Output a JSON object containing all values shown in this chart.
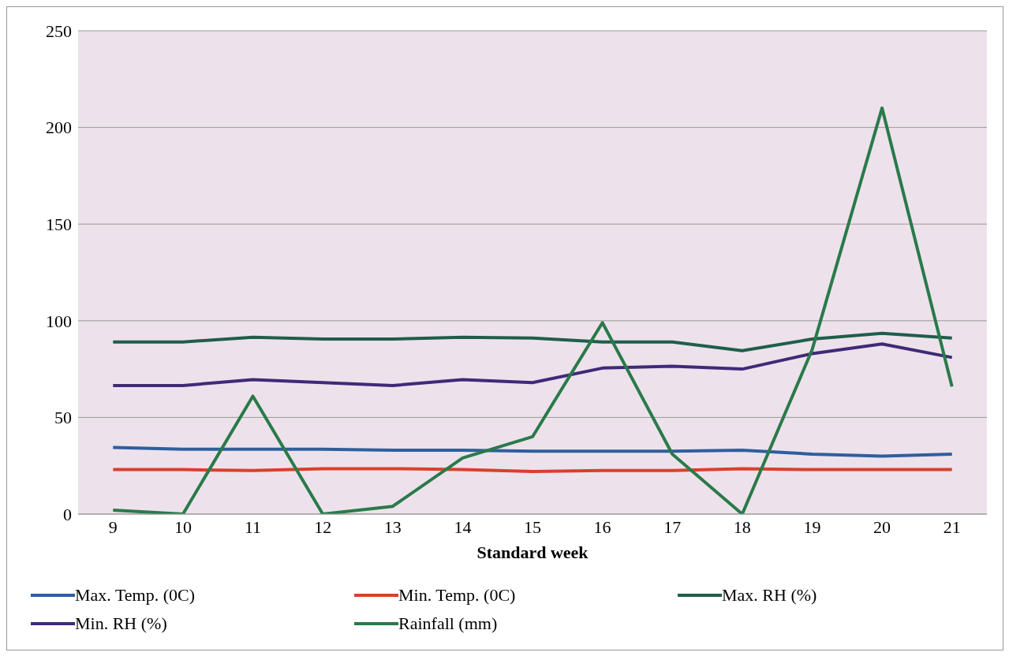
{
  "chart_data": {
    "type": "line",
    "xlabel": "Standard week",
    "categories": [
      "9",
      "10",
      "11",
      "12",
      "13",
      "14",
      "15",
      "16",
      "17",
      "18",
      "19",
      "20",
      "21"
    ],
    "ylim": [
      0,
      250
    ],
    "yticks": [
      0,
      50,
      100,
      150,
      200,
      250
    ],
    "grid": "y",
    "legend": "bottom",
    "marker": "none",
    "line_style": "solid",
    "series": [
      {
        "name": "Max. Temp. (0C)",
        "color": "#2e5f9e",
        "values": [
          34.5,
          33.5,
          33.5,
          33.5,
          33,
          33,
          32.5,
          32.5,
          32.5,
          33,
          31,
          30,
          31
        ]
      },
      {
        "name": "Min. Temp. (0C)",
        "color": "#d9402b",
        "values": [
          23,
          23,
          22.5,
          23.5,
          23.5,
          23,
          22,
          22.5,
          22.5,
          23.5,
          23,
          23,
          23
        ]
      },
      {
        "name": "Max. RH (%)",
        "color": "#1f5e4a",
        "values": [
          89,
          89,
          91.5,
          90.5,
          90.5,
          91.5,
          91,
          89,
          89,
          84.5,
          90.5,
          93.5,
          91
        ]
      },
      {
        "name": "Min. RH (%)",
        "color": "#3f2a78",
        "values": [
          66.5,
          66.5,
          69.5,
          68,
          66.5,
          69.5,
          68,
          75.5,
          76.5,
          75,
          83,
          88,
          81
        ]
      },
      {
        "name": "Rainfall (mm)",
        "color": "#2a7a4a",
        "values": [
          2,
          0,
          61,
          0,
          4,
          29,
          40,
          99,
          31,
          0,
          85,
          210,
          66
        ]
      }
    ]
  }
}
